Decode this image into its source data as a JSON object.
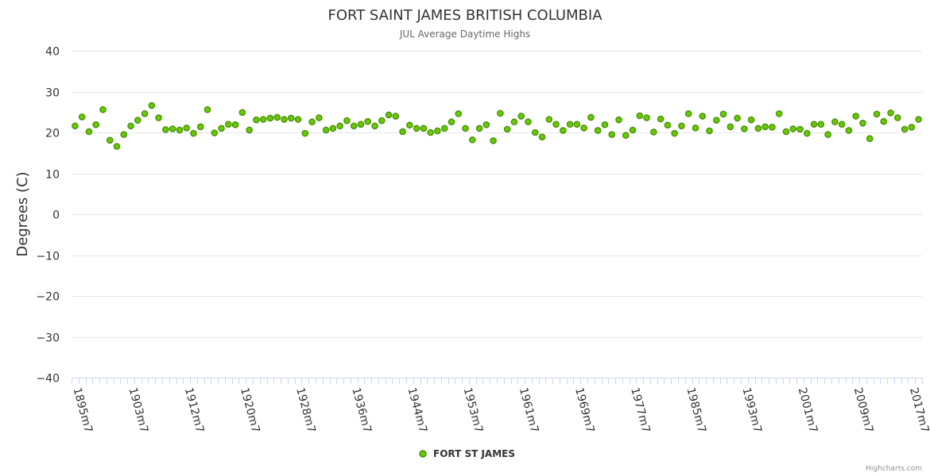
{
  "chart_data": {
    "type": "scatter",
    "title": "FORT SAINT JAMES BRITISH COLUMBIA",
    "subtitle": "JUL Average Daytime Highs",
    "ylabel": "Degrees (C)",
    "xlabel": "",
    "ylim": [
      -40,
      40
    ],
    "yticks": [
      -40,
      -30,
      -20,
      -10,
      0,
      10,
      20,
      30,
      40
    ],
    "x_tick_labels": [
      "1895m7",
      "1903m7",
      "1912m7",
      "1920m7",
      "1928m7",
      "1936m7",
      "1944m7",
      "1953m7",
      "1961m7",
      "1969m7",
      "1977m7",
      "1985m7",
      "1993m7",
      "2001m7",
      "2009m7",
      "2017m7"
    ],
    "x_tick_label_indices": [
      0,
      8,
      16,
      24,
      32,
      40,
      48,
      56,
      64,
      72,
      80,
      88,
      96,
      104,
      112,
      120
    ],
    "grid": true,
    "legend_position": "bottom-center",
    "series": [
      {
        "name": "FORT ST JAMES",
        "color": "#66cc00",
        "marker_edge": "#4a8f0a",
        "values": [
          21.6,
          23.8,
          20.2,
          21.9,
          25.6,
          18.1,
          16.6,
          19.5,
          21.6,
          23.0,
          24.6,
          26.6,
          23.6,
          20.7,
          20.9,
          20.6,
          21.1,
          19.8,
          21.4,
          25.6,
          19.9,
          21.0,
          22.0,
          21.9,
          24.9,
          20.6,
          23.1,
          23.2,
          23.5,
          23.7,
          23.2,
          23.5,
          23.2,
          19.8,
          22.6,
          23.6,
          20.6,
          21.0,
          21.6,
          22.9,
          21.6,
          22.0,
          22.7,
          21.6,
          22.9,
          24.3,
          24.0,
          20.2,
          21.8,
          21.0,
          21.0,
          20.0,
          20.4,
          21.0,
          22.6,
          24.6,
          21.0,
          18.2,
          21.0,
          21.9,
          18.0,
          24.7,
          20.8,
          22.6,
          24.0,
          22.6,
          20.0,
          18.9,
          23.2,
          22.0,
          20.5,
          22.0,
          22.0,
          21.1,
          23.7,
          20.5,
          21.9,
          19.5,
          23.1,
          19.3,
          20.6,
          24.1,
          23.6,
          20.1,
          23.3,
          21.8,
          19.8,
          21.6,
          24.6,
          21.1,
          24.0,
          20.4,
          23.0,
          24.5,
          21.4,
          23.5,
          20.9,
          23.1,
          21.0,
          21.4,
          21.3,
          24.6,
          20.2,
          20.9,
          20.8,
          19.8,
          22.0,
          22.0,
          19.5,
          22.6,
          22.0,
          20.5,
          24.0,
          22.3,
          18.5,
          24.5,
          22.7,
          24.8,
          23.6,
          20.8,
          21.3,
          23.2
        ]
      }
    ]
  },
  "legend": {
    "label": "FORT ST JAMES"
  },
  "credits": "Highcharts.com"
}
